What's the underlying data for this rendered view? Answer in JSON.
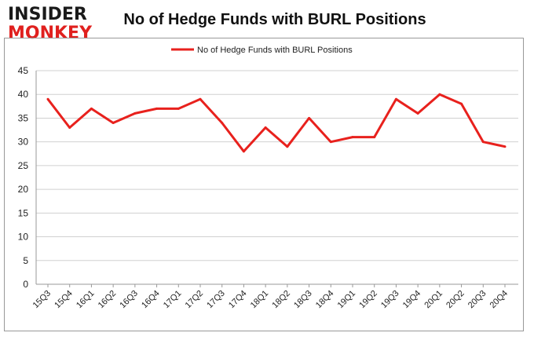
{
  "logo": {
    "line1": "INSIDER",
    "line2": "MONKEY"
  },
  "chart_data": {
    "type": "line",
    "title": "No of Hedge Funds with BURL Positions",
    "xlabel": "",
    "ylabel": "",
    "ylim": [
      0,
      45
    ],
    "yticks": [
      0,
      5,
      10,
      15,
      20,
      25,
      30,
      35,
      40,
      45
    ],
    "grid": true,
    "legend": "top-center",
    "categories": [
      "15Q3",
      "15Q4",
      "16Q1",
      "16Q2",
      "16Q3",
      "16Q4",
      "17Q1",
      "17Q2",
      "17Q3",
      "17Q4",
      "18Q1",
      "18Q2",
      "18Q3",
      "18Q4",
      "19Q1",
      "19Q2",
      "19Q3",
      "19Q4",
      "20Q1",
      "20Q2",
      "20Q3",
      "20Q4"
    ],
    "series": [
      {
        "name": "No of Hedge Funds with BURL Positions",
        "color": "#e8211d",
        "values": [
          39,
          33,
          37,
          34,
          36,
          37,
          37,
          39,
          34,
          28,
          33,
          29,
          35,
          30,
          31,
          31,
          39,
          36,
          40,
          38,
          30,
          29
        ]
      }
    ]
  }
}
